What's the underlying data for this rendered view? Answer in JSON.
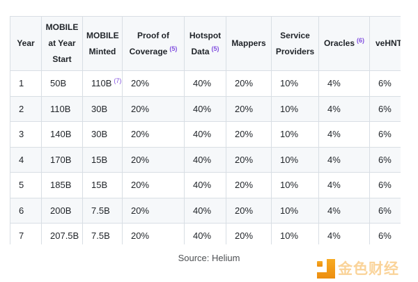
{
  "table": {
    "columns": [
      {
        "label": "Year"
      },
      {
        "label": "MOBILE at Year Start"
      },
      {
        "label": "MOBILE Minted"
      },
      {
        "label": "Proof of Coverage",
        "sup": "(5)"
      },
      {
        "label": "Hotspot Data",
        "sup": "(5)"
      },
      {
        "label": "Mappers"
      },
      {
        "label": "Service Providers"
      },
      {
        "label": "Oracles",
        "sup": "(6)"
      },
      {
        "label": "veHNT Stakers"
      }
    ],
    "rows": [
      [
        "1",
        "50B",
        {
          "text": "110B",
          "sup": "(7)"
        },
        "20%",
        "40%",
        "20%",
        "10%",
        "4%",
        "6%"
      ],
      [
        "2",
        "110B",
        "30B",
        "20%",
        "40%",
        "20%",
        "10%",
        "4%",
        "6%"
      ],
      [
        "3",
        "140B",
        "30B",
        "20%",
        "40%",
        "20%",
        "10%",
        "4%",
        "6%"
      ],
      [
        "4",
        "170B",
        "15B",
        "20%",
        "40%",
        "20%",
        "10%",
        "4%",
        "6%"
      ],
      [
        "5",
        "185B",
        "15B",
        "20%",
        "40%",
        "20%",
        "10%",
        "4%",
        "6%"
      ],
      [
        "6",
        "200B",
        "7.5B",
        "20%",
        "40%",
        "20%",
        "10%",
        "4%",
        "6%"
      ],
      [
        "7",
        "207.5B",
        "7.5B",
        "20%",
        "40%",
        "20%",
        "10%",
        "4%",
        "6%"
      ]
    ]
  },
  "source": {
    "text": "Source: Helium"
  },
  "watermark": {
    "text": "金色财经",
    "icon": "jinse-finance-logo"
  },
  "colors": {
    "ink": "#1f2328",
    "purple": "#8250df",
    "border": "#d8dee4",
    "stripe": "#f6f8fa",
    "orange": "#f5a01e"
  }
}
